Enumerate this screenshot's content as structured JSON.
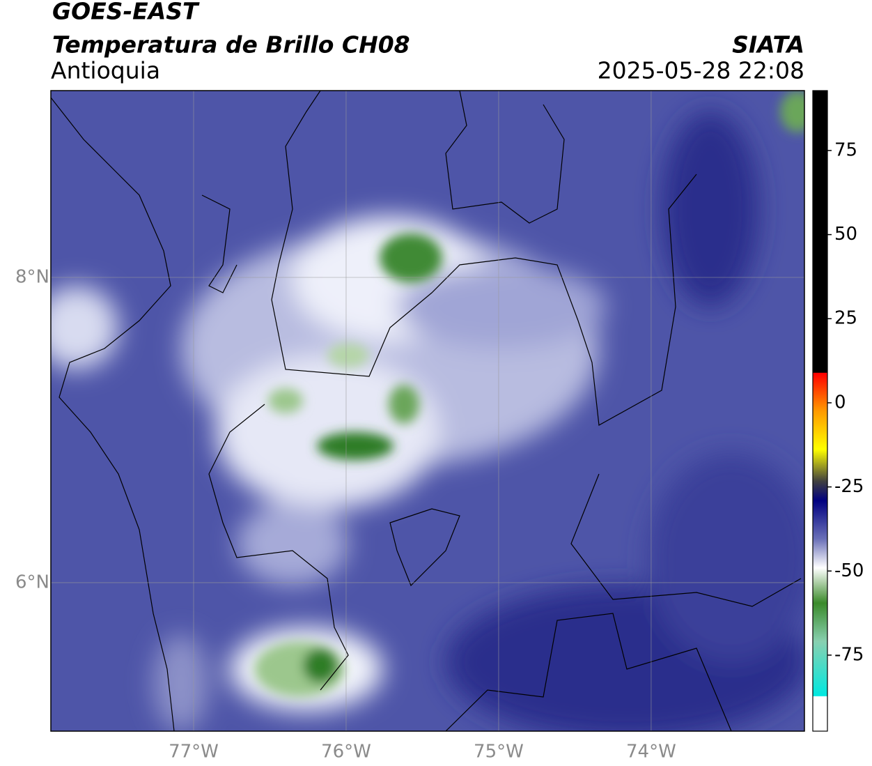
{
  "header": {
    "title": "GOES-EAST",
    "subtitle": "Temperatura de Brillo CH08",
    "region": "Antioquia",
    "source": "SIATA",
    "datetime": "2025-05-28 22:08"
  },
  "map": {
    "xlim": [
      -77.936,
      -72.995
    ],
    "ylim": [
      5.027,
      9.224
    ],
    "xticks": [
      {
        "value": -77,
        "label": "77°W"
      },
      {
        "value": -76,
        "label": "76°W"
      },
      {
        "value": -75,
        "label": "75°W"
      },
      {
        "value": -74,
        "label": "74°W"
      }
    ],
    "yticks": [
      {
        "value": 8,
        "label": "8°N"
      },
      {
        "value": 6,
        "label": "6°N"
      }
    ]
  },
  "colorbar": {
    "lim": [
      -97.6,
      92.8
    ],
    "ticks": [
      75,
      50,
      25,
      0,
      -25,
      -50,
      -75
    ]
  }
}
